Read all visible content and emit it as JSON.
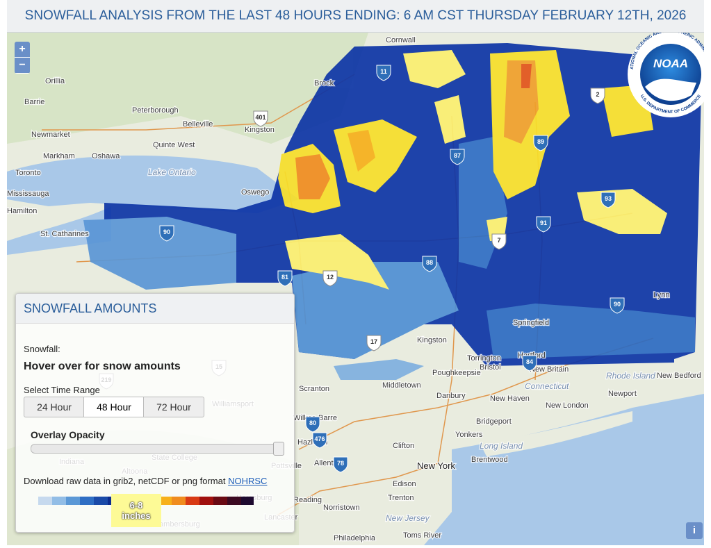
{
  "header": {
    "title": "SNOWFALL ANALYSIS FROM THE LAST 48 HOURS ENDING: 6 AM CST THURSDAY FEBRUARY 12TH, 2026"
  },
  "map": {
    "zoom_in": "+",
    "zoom_out": "−",
    "info": "i",
    "labels": [
      "Cornwall",
      "Orillia",
      "Barrie",
      "Peterborough",
      "Belleville",
      "Kingston",
      "Quinte West",
      "Newmarket",
      "Markham",
      "Oshawa",
      "Toronto",
      "Lake Ontario",
      "Mississauga",
      "Oswego",
      "Hamilton",
      "St. Catharines",
      "Brock",
      "Kingston",
      "Torrington",
      "Hartford",
      "Poughkeepsie",
      "Bristol",
      "New Britain",
      "Rhode Island",
      "New Bedford",
      "Middletown",
      "Connecticut",
      "Newport",
      "Danbury",
      "New Haven",
      "New London",
      "Scranton",
      "Williamsport",
      "Bridgeport",
      "Wilkes-Barre",
      "Yonkers",
      "Hazleton",
      "Clifton",
      "Long Island",
      "Brentwood",
      "Allentown",
      "New York",
      "Pottsville",
      "State College",
      "Altoona",
      "Indiana",
      "Harrisburg",
      "Edison",
      "Reading",
      "Trenton",
      "Norristown",
      "New Jersey",
      "Lancaster",
      "Philadelphia",
      "Toms River",
      "Springfield",
      "Lynn",
      "Chambersburg"
    ],
    "shields": [
      "11",
      "401",
      "87",
      "89",
      "2",
      "93",
      "91",
      "7",
      "88",
      "81",
      "12",
      "90",
      "90",
      "84",
      "17",
      "476",
      "80",
      "78",
      "15",
      "219"
    ]
  },
  "logo": {
    "acronym": "NOAA",
    "ring_top": "NATIONAL OCEANIC AND ATMOSPHERIC ADMINISTRATION",
    "ring_bottom": "U.S. DEPARTMENT OF COMMERCE"
  },
  "panel": {
    "title": "SNOWFALL AMOUNTS",
    "snowfall_label": "Snowfall:",
    "hover_text": "Hover over for snow amounts",
    "range_label": "Select Time Range",
    "ranges": [
      "24 Hour",
      "48 Hour",
      "72 Hour"
    ],
    "opacity_label": "Overlay Opacity",
    "download_text": "Download raw data in grib2, netCDF or png format",
    "download_link": "NOHRSC",
    "legend_tip": [
      "6-8",
      "inches"
    ]
  }
}
